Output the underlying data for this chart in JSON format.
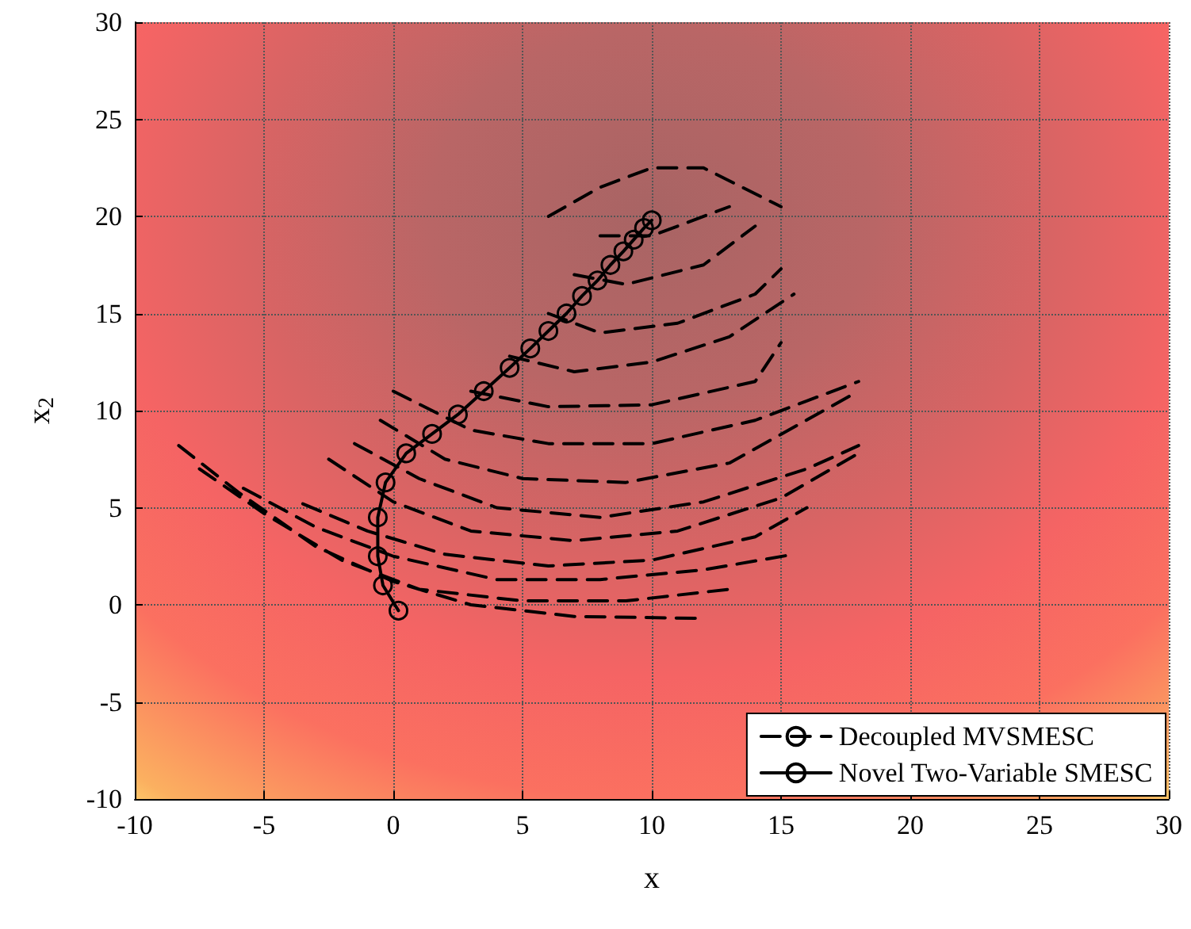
{
  "chart_data": {
    "type": "line",
    "xlabel": "x",
    "ylabel": "x$_{2}$",
    "xlim": [
      -10,
      30
    ],
    "ylim": [
      -10,
      30
    ],
    "xticks": [
      -10,
      -5,
      0,
      5,
      10,
      15,
      20,
      25,
      30
    ],
    "yticks": [
      -10,
      -5,
      0,
      5,
      10,
      15,
      20,
      25,
      30
    ],
    "grid": true,
    "legend": "bottom right",
    "series": [
      {
        "name": "Decoupled MVSMESC",
        "color": "#000000",
        "line_style": "dashed",
        "marker": "none",
        "x": [
          -8.3,
          -6,
          -3,
          0,
          3,
          7,
          12,
          null,
          -7.5,
          -5,
          -2,
          1,
          5,
          9,
          13,
          null,
          -5.8,
          -3,
          0,
          4,
          8,
          12,
          15.5,
          null,
          -3.5,
          -1,
          2,
          6,
          10,
          14,
          16,
          null,
          -2.5,
          0,
          3,
          7,
          11,
          15,
          18,
          null,
          -1.5,
          1,
          4,
          8,
          12,
          16,
          18,
          null,
          -0.5,
          2,
          5,
          9,
          13,
          18,
          null,
          0,
          3,
          6,
          10,
          14,
          18,
          null,
          3,
          6,
          10,
          14,
          15,
          null,
          4.5,
          7,
          10,
          13,
          15.5,
          null,
          6,
          8,
          11,
          14,
          15,
          null,
          7,
          9,
          12,
          14,
          null,
          8,
          10,
          13,
          null,
          6,
          8,
          10,
          12,
          15
        ],
        "values": [
          8.2,
          5.8,
          3,
          1.2,
          0,
          -0.6,
          -0.7,
          null,
          7,
          4.7,
          2.3,
          0.8,
          0.2,
          0.2,
          0.8,
          null,
          6,
          4,
          2.5,
          1.3,
          1.3,
          1.8,
          2.6,
          null,
          5.2,
          3.8,
          2.6,
          2,
          2.3,
          3.5,
          5,
          null,
          7.5,
          5.3,
          3.8,
          3.3,
          3.8,
          5.5,
          7.8,
          null,
          8.3,
          6.5,
          5,
          4.5,
          5.3,
          7,
          8.2,
          null,
          9.5,
          7.5,
          6.5,
          6.3,
          7.3,
          11,
          null,
          11,
          9,
          8.3,
          8.3,
          9.5,
          11.5,
          null,
          11,
          10.2,
          10.3,
          11.5,
          13.5,
          null,
          12.8,
          12,
          12.5,
          13.8,
          16,
          null,
          15,
          14,
          14.5,
          16,
          17.3,
          null,
          17,
          16.5,
          17.5,
          19.5,
          null,
          19,
          19,
          20.5,
          null,
          20,
          21.5,
          22.5,
          22.5,
          20.5
        ]
      },
      {
        "name": "Novel Two-Variable SMESC",
        "color": "#000000",
        "line_style": "solid",
        "marker": "circle",
        "x": [
          0.2,
          -0.4,
          -0.6,
          -0.6,
          -0.3,
          0.5,
          1.5,
          2.5,
          3.5,
          4.5,
          5.3,
          6,
          6.7,
          7.3,
          7.9,
          8.4,
          8.9,
          9.3,
          9.7,
          10
        ],
        "values": [
          -0.3,
          1,
          2.5,
          4.5,
          6.3,
          7.8,
          8.8,
          9.8,
          11,
          12.2,
          13.2,
          14.1,
          15,
          15.9,
          16.7,
          17.5,
          18.2,
          18.8,
          19.4,
          19.8
        ]
      }
    ]
  }
}
